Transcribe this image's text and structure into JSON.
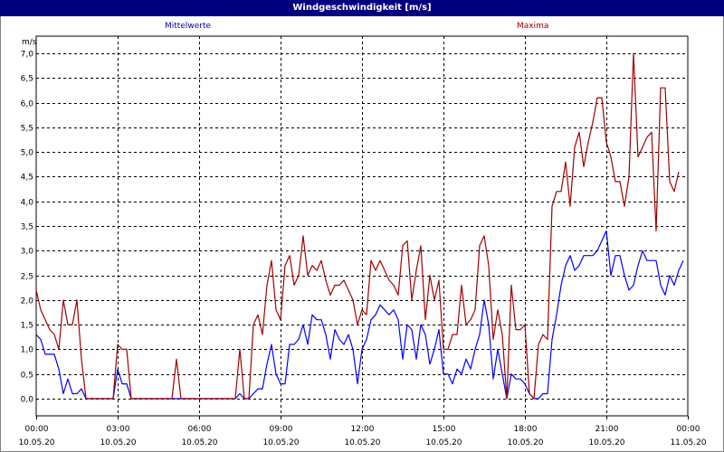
{
  "chart_data": {
    "type": "line",
    "title": "Windgeschwindigkeit [m/s]",
    "ylabel": "m/s",
    "ylim": [
      0,
      7.0
    ],
    "xlim": [
      "2020-05-10T00:00",
      "2020-05-11T00:00"
    ],
    "grid": true,
    "legend": [
      "Mittelwerte",
      "Maxima"
    ],
    "yticks": [
      "0,0",
      "0,5",
      "1,0",
      "1,5",
      "2,0",
      "2,5",
      "3,0",
      "3,5",
      "4,0",
      "4,5",
      "5,0",
      "5,5",
      "6,0",
      "6,5",
      "7,0"
    ],
    "xticks": [
      {
        "time": "00:00",
        "date": "10.05.20"
      },
      {
        "time": "03:00",
        "date": "10.05.20"
      },
      {
        "time": "06:00",
        "date": "10.05.20"
      },
      {
        "time": "09:00",
        "date": "10.05.20"
      },
      {
        "time": "12:00",
        "date": "10.05.20"
      },
      {
        "time": "15:00",
        "date": "10.05.20"
      },
      {
        "time": "18:00",
        "date": "10.05.20"
      },
      {
        "time": "21:00",
        "date": "10.05.20"
      },
      {
        "time": "00:00",
        "date": "11.05.20"
      }
    ],
    "series": [
      {
        "name": "Mittelwerte",
        "color": "#0000ff",
        "points": [
          [
            "00:00",
            1.3
          ],
          [
            "00:10",
            1.2
          ],
          [
            "00:20",
            0.9
          ],
          [
            "00:30",
            0.9
          ],
          [
            "00:40",
            0.9
          ],
          [
            "00:50",
            0.6
          ],
          [
            "01:00",
            0.1
          ],
          [
            "01:10",
            0.4
          ],
          [
            "01:20",
            0.1
          ],
          [
            "01:30",
            0.1
          ],
          [
            "01:40",
            0.2
          ],
          [
            "01:50",
            0.0
          ],
          [
            "02:00",
            0.0
          ],
          [
            "02:30",
            0.0
          ],
          [
            "02:50",
            0.0
          ],
          [
            "03:00",
            0.6
          ],
          [
            "03:10",
            0.3
          ],
          [
            "03:20",
            0.3
          ],
          [
            "03:30",
            0.0
          ],
          [
            "04:00",
            0.0
          ],
          [
            "05:00",
            0.0
          ],
          [
            "06:00",
            0.0
          ],
          [
            "07:00",
            0.0
          ],
          [
            "07:20",
            0.0
          ],
          [
            "07:30",
            0.1
          ],
          [
            "07:40",
            0.0
          ],
          [
            "07:50",
            0.0
          ],
          [
            "08:00",
            0.1
          ],
          [
            "08:10",
            0.2
          ],
          [
            "08:20",
            0.2
          ],
          [
            "08:30",
            0.7
          ],
          [
            "08:40",
            1.1
          ],
          [
            "08:50",
            0.5
          ],
          [
            "09:00",
            0.3
          ],
          [
            "09:10",
            0.3
          ],
          [
            "09:20",
            1.1
          ],
          [
            "09:30",
            1.1
          ],
          [
            "09:40",
            1.2
          ],
          [
            "09:50",
            1.5
          ],
          [
            "10:00",
            1.1
          ],
          [
            "10:10",
            1.7
          ],
          [
            "10:20",
            1.6
          ],
          [
            "10:30",
            1.6
          ],
          [
            "10:40",
            1.3
          ],
          [
            "10:50",
            0.8
          ],
          [
            "11:00",
            1.4
          ],
          [
            "11:10",
            1.2
          ],
          [
            "11:20",
            1.1
          ],
          [
            "11:30",
            1.3
          ],
          [
            "11:40",
            1.0
          ],
          [
            "11:50",
            0.3
          ],
          [
            "12:00",
            1.0
          ],
          [
            "12:10",
            1.2
          ],
          [
            "12:20",
            1.6
          ],
          [
            "12:30",
            1.7
          ],
          [
            "12:40",
            1.9
          ],
          [
            "12:50",
            1.8
          ],
          [
            "13:00",
            1.7
          ],
          [
            "13:10",
            1.8
          ],
          [
            "13:20",
            1.6
          ],
          [
            "13:30",
            0.8
          ],
          [
            "13:40",
            1.5
          ],
          [
            "13:50",
            1.4
          ],
          [
            "14:00",
            0.8
          ],
          [
            "14:10",
            1.5
          ],
          [
            "14:20",
            1.3
          ],
          [
            "14:30",
            0.7
          ],
          [
            "14:40",
            1.0
          ],
          [
            "14:50",
            1.4
          ],
          [
            "15:00",
            0.5
          ],
          [
            "15:10",
            0.5
          ],
          [
            "15:20",
            0.3
          ],
          [
            "15:30",
            0.6
          ],
          [
            "15:40",
            0.5
          ],
          [
            "15:50",
            0.8
          ],
          [
            "16:00",
            0.6
          ],
          [
            "16:10",
            1.0
          ],
          [
            "16:20",
            1.3
          ],
          [
            "16:30",
            2.0
          ],
          [
            "16:40",
            1.5
          ],
          [
            "16:50",
            0.4
          ],
          [
            "17:00",
            1.0
          ],
          [
            "17:10",
            0.5
          ],
          [
            "17:20",
            0.0
          ],
          [
            "17:30",
            0.5
          ],
          [
            "17:40",
            0.4
          ],
          [
            "17:50",
            0.4
          ],
          [
            "18:00",
            0.3
          ],
          [
            "18:10",
            0.1
          ],
          [
            "18:20",
            0.0
          ],
          [
            "18:30",
            0.0
          ],
          [
            "18:40",
            0.1
          ],
          [
            "18:50",
            0.1
          ],
          [
            "19:00",
            1.2
          ],
          [
            "19:10",
            1.7
          ],
          [
            "19:20",
            2.3
          ],
          [
            "19:30",
            2.7
          ],
          [
            "19:40",
            2.9
          ],
          [
            "19:50",
            2.6
          ],
          [
            "20:00",
            2.7
          ],
          [
            "20:10",
            2.9
          ],
          [
            "20:20",
            2.9
          ],
          [
            "20:30",
            2.9
          ],
          [
            "20:40",
            3.0
          ],
          [
            "20:50",
            3.2
          ],
          [
            "21:00",
            3.4
          ],
          [
            "21:10",
            2.5
          ],
          [
            "21:20",
            2.9
          ],
          [
            "21:30",
            2.9
          ],
          [
            "21:40",
            2.5
          ],
          [
            "21:50",
            2.2
          ],
          [
            "22:00",
            2.3
          ],
          [
            "22:10",
            2.7
          ],
          [
            "22:20",
            3.0
          ],
          [
            "22:30",
            2.8
          ],
          [
            "22:40",
            2.8
          ],
          [
            "22:50",
            2.8
          ],
          [
            "23:00",
            2.3
          ],
          [
            "23:10",
            2.1
          ],
          [
            "23:20",
            2.5
          ],
          [
            "23:30",
            2.3
          ],
          [
            "23:40",
            2.6
          ],
          [
            "23:50",
            2.8
          ]
        ]
      },
      {
        "name": "Maxima",
        "color": "#a00000",
        "points": [
          [
            "00:00",
            2.2
          ],
          [
            "00:10",
            1.8
          ],
          [
            "00:20",
            1.6
          ],
          [
            "00:30",
            1.4
          ],
          [
            "00:40",
            1.3
          ],
          [
            "00:50",
            1.0
          ],
          [
            "01:00",
            2.0
          ],
          [
            "01:10",
            1.5
          ],
          [
            "01:20",
            1.5
          ],
          [
            "01:30",
            2.0
          ],
          [
            "01:40",
            0.8
          ],
          [
            "01:50",
            0.0
          ],
          [
            "02:00",
            0.0
          ],
          [
            "02:30",
            0.0
          ],
          [
            "02:50",
            0.0
          ],
          [
            "03:00",
            1.1
          ],
          [
            "03:10",
            1.0
          ],
          [
            "03:20",
            1.0
          ],
          [
            "03:30",
            0.0
          ],
          [
            "04:00",
            0.0
          ],
          [
            "05:00",
            0.0
          ],
          [
            "05:10",
            0.8
          ],
          [
            "05:20",
            0.0
          ],
          [
            "06:00",
            0.0
          ],
          [
            "07:00",
            0.0
          ],
          [
            "07:20",
            0.0
          ],
          [
            "07:30",
            1.0
          ],
          [
            "07:40",
            0.0
          ],
          [
            "07:50",
            0.0
          ],
          [
            "08:00",
            1.5
          ],
          [
            "08:10",
            1.7
          ],
          [
            "08:20",
            1.3
          ],
          [
            "08:30",
            2.3
          ],
          [
            "08:40",
            2.8
          ],
          [
            "08:50",
            1.8
          ],
          [
            "09:00",
            1.6
          ],
          [
            "09:10",
            2.7
          ],
          [
            "09:20",
            2.9
          ],
          [
            "09:30",
            2.3
          ],
          [
            "09:40",
            2.5
          ],
          [
            "09:50",
            3.3
          ],
          [
            "10:00",
            2.5
          ],
          [
            "10:10",
            2.7
          ],
          [
            "10:20",
            2.6
          ],
          [
            "10:30",
            2.8
          ],
          [
            "10:40",
            2.4
          ],
          [
            "10:50",
            2.1
          ],
          [
            "11:00",
            2.3
          ],
          [
            "11:10",
            2.3
          ],
          [
            "11:20",
            2.4
          ],
          [
            "11:30",
            2.2
          ],
          [
            "11:40",
            2.0
          ],
          [
            "11:50",
            1.5
          ],
          [
            "12:00",
            1.8
          ],
          [
            "12:10",
            1.7
          ],
          [
            "12:20",
            2.8
          ],
          [
            "12:30",
            2.6
          ],
          [
            "12:40",
            2.8
          ],
          [
            "12:50",
            2.6
          ],
          [
            "13:00",
            2.4
          ],
          [
            "13:10",
            2.3
          ],
          [
            "13:20",
            2.1
          ],
          [
            "13:30",
            3.1
          ],
          [
            "13:40",
            3.2
          ],
          [
            "13:50",
            2.0
          ],
          [
            "14:00",
            2.6
          ],
          [
            "14:10",
            3.1
          ],
          [
            "14:20",
            1.6
          ],
          [
            "14:30",
            2.5
          ],
          [
            "14:40",
            2.0
          ],
          [
            "14:50",
            2.4
          ],
          [
            "15:00",
            1.0
          ],
          [
            "15:10",
            1.0
          ],
          [
            "15:20",
            1.3
          ],
          [
            "15:30",
            1.3
          ],
          [
            "15:40",
            2.3
          ],
          [
            "15:50",
            1.5
          ],
          [
            "16:00",
            1.6
          ],
          [
            "16:10",
            1.8
          ],
          [
            "16:20",
            3.1
          ],
          [
            "16:30",
            3.3
          ],
          [
            "16:40",
            2.7
          ],
          [
            "16:50",
            1.2
          ],
          [
            "17:00",
            1.8
          ],
          [
            "17:10",
            1.3
          ],
          [
            "17:20",
            0.0
          ],
          [
            "17:30",
            2.3
          ],
          [
            "17:40",
            1.4
          ],
          [
            "17:50",
            1.4
          ],
          [
            "18:00",
            1.5
          ],
          [
            "18:10",
            0.1
          ],
          [
            "18:20",
            0.0
          ],
          [
            "18:30",
            1.1
          ],
          [
            "18:40",
            1.3
          ],
          [
            "18:50",
            1.2
          ],
          [
            "19:00",
            3.9
          ],
          [
            "19:10",
            4.2
          ],
          [
            "19:20",
            4.2
          ],
          [
            "19:30",
            4.8
          ],
          [
            "19:40",
            3.9
          ],
          [
            "19:50",
            5.1
          ],
          [
            "20:00",
            5.4
          ],
          [
            "20:10",
            4.7
          ],
          [
            "20:20",
            5.2
          ],
          [
            "20:30",
            5.6
          ],
          [
            "20:40",
            6.1
          ],
          [
            "20:50",
            6.1
          ],
          [
            "21:00",
            5.2
          ],
          [
            "21:10",
            4.9
          ],
          [
            "21:20",
            4.4
          ],
          [
            "21:30",
            4.4
          ],
          [
            "21:40",
            3.9
          ],
          [
            "21:50",
            4.5
          ],
          [
            "22:00",
            7.0
          ],
          [
            "22:10",
            4.9
          ],
          [
            "22:20",
            5.1
          ],
          [
            "22:30",
            5.3
          ],
          [
            "22:40",
            5.4
          ],
          [
            "22:50",
            3.4
          ],
          [
            "23:00",
            6.3
          ],
          [
            "23:10",
            6.3
          ],
          [
            "23:20",
            4.4
          ],
          [
            "23:30",
            4.2
          ],
          [
            "23:40",
            4.6
          ]
        ]
      }
    ]
  }
}
